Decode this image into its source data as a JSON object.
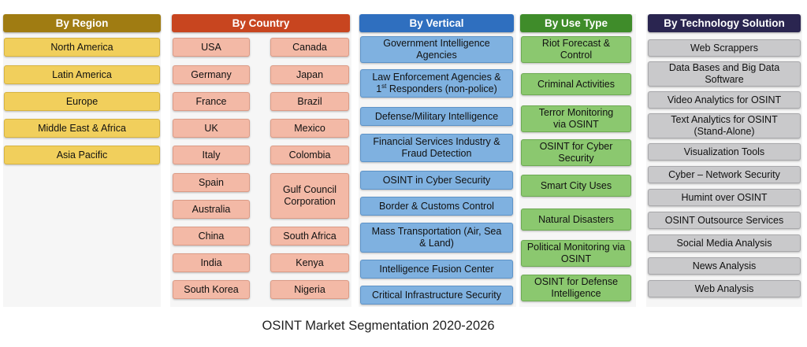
{
  "colors": {
    "region_header": "#a07c12",
    "country_header": "#c8451f",
    "vertical_header": "#2f6fbf",
    "usetype_header": "#3f8c2a",
    "tech_header": "#2a2550"
  },
  "region": {
    "header": "By Region",
    "items": [
      "North America",
      "Latin America",
      "Europe",
      "Middle East & Africa",
      "Asia Pacific"
    ]
  },
  "country": {
    "header": "By Country",
    "left": [
      "USA",
      "Germany",
      "France",
      "UK",
      "Italy",
      "Spain",
      "Australia",
      "China",
      "India",
      "South Korea"
    ],
    "right": [
      "Canada",
      "Japan",
      "Brazil",
      "Mexico",
      "Colombia",
      "Gulf Council Corporation",
      "South Africa",
      "Kenya",
      "Nigeria"
    ]
  },
  "vertical": {
    "header": "By Vertical",
    "items": [
      "Government Intelligence Agencies",
      "Law Enforcement Agencies & 1st Responders (non-police)",
      "Defense/Military Intelligence",
      "Financial Services Industry & Fraud Detection",
      "OSINT in Cyber Security",
      "Border & Customs Control",
      "Mass Transportation (Air, Sea & Land)",
      "Intelligence Fusion Center",
      "Critical Infrastructure Security"
    ]
  },
  "usetype": {
    "header": "By  Use Type",
    "items": [
      "Riot Forecast & Control",
      "Criminal Activities",
      "Terror Monitoring via OSINT",
      "OSINT for Cyber Security",
      "Smart City Uses",
      "Natural Disasters",
      "Political Monitoring via OSINT",
      "OSINT for Defense Intelligence"
    ]
  },
  "tech": {
    "header": "By Technology Solution",
    "items": [
      "Web Scrappers",
      "Data Bases and Big Data Software",
      "Video Analytics for OSINT",
      "Text Analytics for OSINT (Stand-Alone)",
      "Visualization Tools",
      "Cyber – Network Security",
      "Humint over OSINT",
      "OSINT Outsource Services",
      "Social Media Analysis",
      "News Analysis",
      "Web Analysis"
    ]
  },
  "caption": "OSINT Market Segmentation 2020-2026"
}
